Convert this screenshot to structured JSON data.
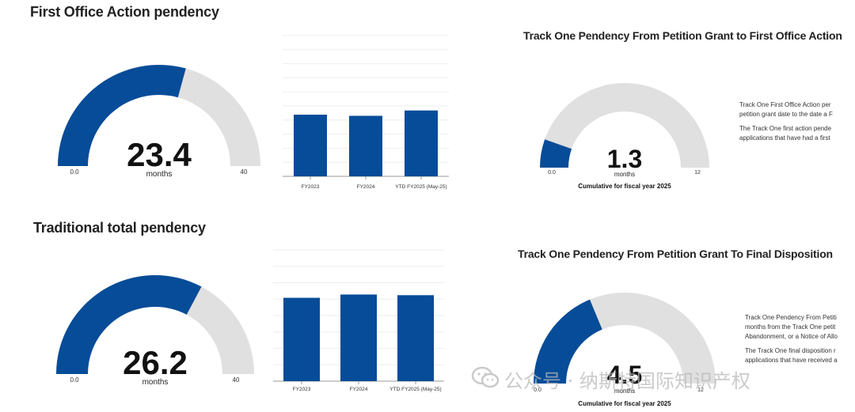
{
  "colors": {
    "fill": "#074c98",
    "track": "#e0e0e0",
    "grid": "#eeeeee"
  },
  "panels": {
    "p1": {
      "title": "First Office Action pendency"
    },
    "p2": {
      "title": "Traditional total pendency"
    },
    "p3": {
      "title": "Track One Pendency From Petition Grant to First Office Action",
      "caption": "Cumulative for fiscal year 2025",
      "desc": [
        "Track One First Office Action per",
        "petition grant date to the date a F",
        "The Track One first action pende",
        "applications that have had a first"
      ]
    },
    "p4": {
      "title": "Track One Pendency From Petition Grant To Final Disposition",
      "caption": "Cumulative for fiscal year 2025",
      "desc": [
        "Track One Pendency From Petiti",
        "months from the Track One petit",
        "Abandonment, or a Notice of Allo",
        "The Track One final disposition r",
        "applications that have received a"
      ]
    }
  },
  "chart_data": [
    {
      "type": "gauge",
      "id": "g1",
      "value": 23.4,
      "value_label": "23.4",
      "unit": "months",
      "min": 0,
      "max": 40,
      "min_label": "0.0",
      "max_label": "40"
    },
    {
      "type": "bar",
      "id": "b1",
      "categories": [
        "FY2023",
        "FY2024",
        "YTD FY2025 (May-25)"
      ],
      "values": [
        21.9,
        21.5,
        23.4
      ],
      "ylim": [
        0,
        50
      ]
    },
    {
      "type": "gauge",
      "id": "g2",
      "value": 26.2,
      "value_label": "26.2",
      "unit": "months",
      "min": 0,
      "max": 40,
      "min_label": "0.0",
      "max_label": "40"
    },
    {
      "type": "bar",
      "id": "b2",
      "categories": [
        "FY2023",
        "FY2024",
        "YTD FY2025 (May-25)"
      ],
      "values": [
        25.4,
        26.4,
        26.2
      ],
      "ylim": [
        0,
        40
      ]
    },
    {
      "type": "gauge",
      "id": "g3",
      "value": 1.3,
      "value_label": "1.3",
      "unit": "months",
      "min": 0,
      "max": 12,
      "min_label": "0.0",
      "max_label": "12"
    },
    {
      "type": "gauge",
      "id": "g4",
      "value": 4.5,
      "value_label": "4.5",
      "unit": "months",
      "min": 0,
      "max": 12,
      "min_label": "0.0",
      "max_label": "12"
    }
  ],
  "watermark": {
    "text": "公众号 · 纳斯特国际知识产权"
  }
}
